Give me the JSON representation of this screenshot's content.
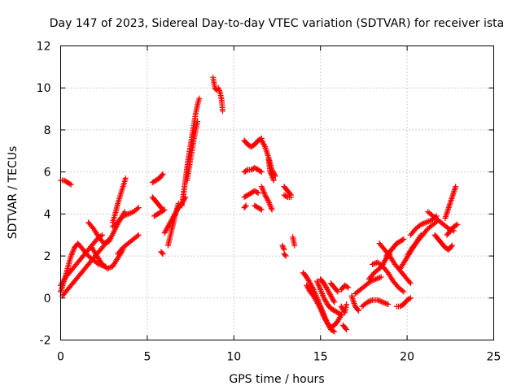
{
  "chart_data": {
    "type": "scatter",
    "title": "Day 147 of 2023, Sidereal Day-to-day VTEC variation (SDTVAR) for receiver ista",
    "xlabel": "GPS time / hours",
    "ylabel": "SDTVAR / TECUs",
    "xlim": [
      0,
      25
    ],
    "ylim": [
      -2,
      12
    ],
    "xticks": [
      0,
      5,
      10,
      15,
      20,
      25
    ],
    "yticks": [
      -2,
      0,
      2,
      4,
      6,
      8,
      10,
      12
    ],
    "grid": true,
    "marker": "+",
    "color": "#ff0000",
    "series": [
      {
        "name": "s1",
        "x": [
          0.0,
          0.2,
          0.4,
          0.6,
          0.8,
          1.0,
          1.3,
          1.6,
          1.9,
          2.2,
          2.6
        ],
        "y": [
          0.3,
          0.8,
          1.4,
          2.0,
          2.4,
          2.6,
          2.3,
          2.0,
          1.8,
          1.6,
          1.5
        ]
      },
      {
        "name": "s2",
        "x": [
          0.0,
          0.3,
          0.6,
          0.9,
          1.2,
          1.5,
          1.8,
          2.1,
          2.4
        ],
        "y": [
          0.6,
          1.0,
          1.3,
          1.6,
          1.9,
          2.2,
          2.5,
          2.8,
          3.0
        ]
      },
      {
        "name": "s3",
        "x": [
          0.1,
          0.4,
          0.7,
          1.0,
          1.3,
          1.6,
          1.9,
          2.2,
          2.5,
          2.8
        ],
        "y": [
          0.1,
          0.4,
          0.7,
          1.0,
          1.3,
          1.6,
          1.9,
          2.2,
          2.5,
          2.8
        ]
      },
      {
        "name": "s4",
        "x": [
          0.0,
          0.2,
          0.4,
          0.6
        ],
        "y": [
          5.6,
          5.6,
          5.5,
          5.4
        ]
      },
      {
        "name": "s5",
        "x": [
          1.6,
          1.9,
          2.2,
          2.5,
          2.8,
          3.1,
          3.4,
          3.7
        ],
        "y": [
          3.6,
          3.3,
          2.9,
          2.6,
          2.7,
          3.2,
          3.7,
          4.1
        ]
      },
      {
        "name": "s6",
        "x": [
          1.8,
          2.1,
          2.4,
          2.7,
          3.0,
          3.3,
          3.6
        ],
        "y": [
          2.4,
          2.0,
          1.6,
          1.4,
          1.5,
          1.9,
          2.3
        ]
      },
      {
        "name": "s7",
        "x": [
          3.0,
          3.15,
          3.3,
          3.45,
          3.6,
          3.75
        ],
        "y": [
          3.6,
          4.0,
          4.5,
          4.9,
          5.3,
          5.7
        ]
      },
      {
        "name": "s8",
        "x": [
          3.0,
          3.3,
          3.6,
          3.9,
          4.2,
          4.5
        ],
        "y": [
          3.4,
          3.6,
          3.9,
          4.0,
          4.1,
          4.3
        ]
      },
      {
        "name": "s9",
        "x": [
          3.3,
          3.6,
          3.9,
          4.2,
          4.5
        ],
        "y": [
          2.1,
          2.4,
          2.6,
          2.8,
          3.0
        ]
      },
      {
        "name": "s10",
        "x": [
          5.3,
          5.5,
          5.7,
          5.9
        ],
        "y": [
          5.5,
          5.6,
          5.7,
          5.9
        ]
      },
      {
        "name": "s11",
        "x": [
          5.3,
          5.5,
          5.7,
          5.9
        ],
        "y": [
          4.8,
          4.6,
          4.4,
          4.2
        ]
      },
      {
        "name": "s12",
        "x": [
          5.4,
          5.6,
          5.8,
          6.0
        ],
        "y": [
          3.9,
          4.0,
          4.1,
          4.2
        ]
      },
      {
        "name": "s13",
        "x": [
          5.8,
          5.9
        ],
        "y": [
          2.2,
          2.1
        ]
      },
      {
        "name": "s14",
        "x": [
          6.0,
          6.2,
          6.4,
          6.6,
          6.8,
          7.0,
          7.2
        ],
        "y": [
          3.1,
          3.4,
          3.7,
          4.0,
          4.3,
          4.5,
          4.8
        ]
      },
      {
        "name": "s15",
        "x": [
          6.2,
          6.4,
          6.6,
          6.8
        ],
        "y": [
          2.5,
          3.2,
          3.9,
          4.5
        ]
      },
      {
        "name": "s16",
        "x": [
          7.0,
          7.1,
          7.2,
          7.3,
          7.4,
          7.5,
          7.6,
          7.7,
          7.8,
          7.9,
          8.0
        ],
        "y": [
          4.4,
          5.0,
          5.6,
          6.2,
          6.8,
          7.3,
          7.8,
          8.3,
          8.8,
          9.2,
          9.5
        ]
      },
      {
        "name": "s17",
        "x": [
          7.3,
          7.5,
          7.7,
          7.9
        ],
        "y": [
          5.6,
          6.6,
          7.6,
          8.4
        ]
      },
      {
        "name": "s18",
        "x": [
          8.8,
          8.9,
          9.0
        ],
        "y": [
          10.5,
          10.0,
          9.9
        ]
      },
      {
        "name": "s19",
        "x": [
          9.1,
          9.2,
          9.3,
          9.35
        ],
        "y": [
          10.0,
          9.8,
          9.4,
          8.9
        ]
      },
      {
        "name": "s20",
        "x": [
          10.6,
          10.8,
          11.0,
          11.2,
          11.4,
          11.6
        ],
        "y": [
          7.5,
          7.3,
          7.2,
          7.3,
          7.5,
          7.6
        ]
      },
      {
        "name": "s21",
        "x": [
          10.6,
          10.8,
          11.0,
          11.2,
          11.4,
          11.6
        ],
        "y": [
          6.0,
          6.1,
          6.1,
          6.2,
          6.1,
          6.0
        ]
      },
      {
        "name": "s22",
        "x": [
          10.6,
          10.8,
          11.0,
          11.2,
          11.4
        ],
        "y": [
          4.8,
          4.9,
          5.0,
          5.1,
          5.0
        ]
      },
      {
        "name": "s23",
        "x": [
          11.6,
          11.8,
          12.0,
          12.2,
          12.4
        ],
        "y": [
          7.5,
          7.2,
          6.7,
          6.1,
          5.8
        ]
      },
      {
        "name": "s24",
        "x": [
          11.6,
          11.8,
          12.0,
          12.2
        ],
        "y": [
          5.3,
          4.9,
          4.6,
          4.2
        ]
      },
      {
        "name": "s25",
        "x": [
          11.2,
          11.4,
          11.6
        ],
        "y": [
          4.4,
          4.3,
          4.2
        ]
      },
      {
        "name": "s26",
        "x": [
          10.6,
          10.7
        ],
        "y": [
          4.3,
          4.4
        ]
      },
      {
        "name": "s27",
        "x": [
          12.0,
          12.1,
          12.3
        ],
        "y": [
          6.6,
          6.0,
          5.6
        ]
      },
      {
        "name": "s28",
        "x": [
          12.9,
          13.1,
          13.3
        ],
        "y": [
          5.3,
          5.1,
          4.9
        ]
      },
      {
        "name": "s29",
        "x": [
          12.9,
          13.1,
          13.3
        ],
        "y": [
          4.9,
          4.8,
          4.8
        ]
      },
      {
        "name": "s30",
        "x": [
          12.9,
          13.0
        ],
        "y": [
          2.1,
          2.0
        ]
      },
      {
        "name": "s31",
        "x": [
          12.8,
          12.9
        ],
        "y": [
          2.5,
          2.3
        ]
      },
      {
        "name": "s32",
        "x": [
          13.4,
          13.5
        ],
        "y": [
          2.9,
          2.5
        ]
      },
      {
        "name": "s33",
        "x": [
          14.0,
          14.2,
          14.4,
          14.6,
          14.8,
          15.0,
          15.2,
          15.4,
          15.6,
          15.8
        ],
        "y": [
          1.2,
          1.0,
          0.7,
          0.4,
          0.0,
          -0.4,
          -0.8,
          -1.2,
          -1.5,
          -1.6
        ]
      },
      {
        "name": "s34",
        "x": [
          14.2,
          14.4,
          14.6,
          14.8,
          15.0,
          15.2,
          15.4,
          15.6,
          15.8,
          16.0,
          16.2
        ],
        "y": [
          0.6,
          0.3,
          0.1,
          -0.2,
          -0.5,
          -0.9,
          -1.2,
          -1.4,
          -1.3,
          -1.1,
          -0.8
        ]
      },
      {
        "name": "s35",
        "x": [
          14.8,
          15.0,
          15.2,
          15.4,
          15.6,
          15.8,
          16.0,
          16.2
        ],
        "y": [
          0.8,
          0.4,
          0.0,
          -0.3,
          -0.5,
          -0.6,
          -0.7,
          -0.8
        ]
      },
      {
        "name": "s36",
        "x": [
          15.0,
          15.2,
          15.4,
          15.6,
          15.8
        ],
        "y": [
          0.9,
          0.7,
          0.4,
          0.1,
          -0.2
        ]
      },
      {
        "name": "s37",
        "x": [
          15.6,
          15.8,
          16.0
        ],
        "y": [
          0.7,
          0.5,
          0.3
        ]
      },
      {
        "name": "s38",
        "x": [
          16.2,
          16.4,
          16.6
        ],
        "y": [
          0.4,
          0.6,
          0.5
        ]
      },
      {
        "name": "s39",
        "x": [
          16.2,
          16.4,
          16.5
        ],
        "y": [
          -0.4,
          -0.7,
          -0.3
        ]
      },
      {
        "name": "s40",
        "x": [
          16.3,
          16.5
        ],
        "y": [
          -1.3,
          -1.5
        ]
      },
      {
        "name": "s41",
        "x": [
          16.8,
          17.0,
          17.2
        ],
        "y": [
          0.1,
          -0.4,
          -0.6
        ]
      },
      {
        "name": "s42",
        "x": [
          17.0,
          17.3,
          17.6,
          17.9,
          18.2,
          18.5
        ],
        "y": [
          0.2,
          0.4,
          0.6,
          0.8,
          0.9,
          1.0
        ]
      },
      {
        "name": "s43",
        "x": [
          17.4,
          17.7,
          18.0,
          18.3,
          18.6,
          18.9
        ],
        "y": [
          -0.4,
          -0.2,
          -0.1,
          -0.1,
          -0.2,
          -0.3
        ]
      },
      {
        "name": "s44",
        "x": [
          17.8,
          18.1,
          18.4,
          18.6,
          18.8,
          19.0
        ],
        "y": [
          0.9,
          1.2,
          1.4,
          1.6,
          1.9,
          2.1
        ]
      },
      {
        "name": "s45",
        "x": [
          18.0,
          18.3,
          18.6,
          18.9,
          19.2,
          19.5,
          19.8
        ],
        "y": [
          1.6,
          1.7,
          1.5,
          1.2,
          0.8,
          0.5,
          0.3
        ]
      },
      {
        "name": "s46",
        "x": [
          18.4,
          18.7,
          19.0,
          19.3,
          19.6,
          19.9,
          20.2
        ],
        "y": [
          2.6,
          2.3,
          2.0,
          1.6,
          1.3,
          1.0,
          0.7
        ]
      },
      {
        "name": "s47",
        "x": [
          18.8,
          19.0,
          19.2,
          19.4,
          19.6,
          19.8
        ],
        "y": [
          2.0,
          2.2,
          2.4,
          2.6,
          2.7,
          2.8
        ]
      },
      {
        "name": "s48",
        "x": [
          19.4,
          19.6,
          19.8,
          20.0,
          20.2
        ],
        "y": [
          -0.4,
          -0.4,
          -0.3,
          -0.1,
          0.0
        ]
      },
      {
        "name": "s49",
        "x": [
          19.6,
          19.9,
          20.2,
          20.5,
          20.8
        ],
        "y": [
          1.4,
          1.8,
          2.2,
          2.6,
          3.0
        ]
      },
      {
        "name": "s50",
        "x": [
          20.0,
          20.3,
          20.6,
          20.9,
          21.2,
          21.5,
          21.8
        ],
        "y": [
          2.0,
          2.4,
          2.7,
          3.0,
          3.3,
          3.5,
          3.7
        ]
      },
      {
        "name": "s51",
        "x": [
          20.2,
          20.5,
          20.8,
          21.1,
          21.4,
          21.7
        ],
        "y": [
          3.0,
          3.3,
          3.5,
          3.6,
          3.7,
          3.9
        ]
      },
      {
        "name": "s52",
        "x": [
          21.2,
          21.5,
          21.8,
          22.1,
          22.4,
          22.7
        ],
        "y": [
          4.1,
          3.9,
          3.7,
          3.5,
          3.3,
          3.2
        ]
      },
      {
        "name": "s53",
        "x": [
          21.6,
          21.8,
          22.0,
          22.2,
          22.4,
          22.6
        ],
        "y": [
          3.0,
          2.8,
          2.6,
          2.4,
          2.3,
          2.5
        ]
      },
      {
        "name": "s54",
        "x": [
          22.2,
          22.4,
          22.6,
          22.8
        ],
        "y": [
          3.8,
          4.3,
          4.8,
          5.3
        ]
      },
      {
        "name": "s55",
        "x": [
          22.3,
          22.5,
          22.7,
          22.9
        ],
        "y": [
          3.0,
          3.2,
          3.4,
          3.5
        ]
      }
    ]
  }
}
